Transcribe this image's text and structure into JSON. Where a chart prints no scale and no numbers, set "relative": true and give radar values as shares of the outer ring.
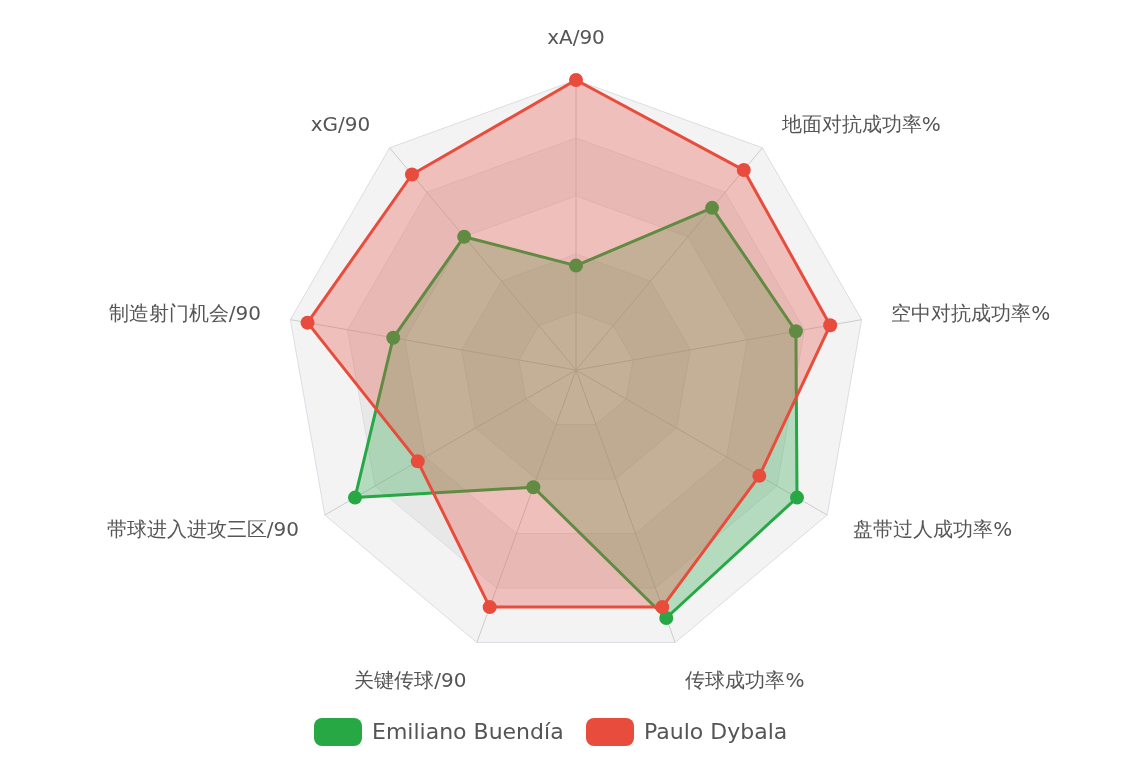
{
  "chart_data": {
    "type": "radar",
    "relative": true,
    "grid": true,
    "legend": "bottom",
    "marker": "circle",
    "categories": [
      "xA/90",
      "地面对抗成功率%",
      "空中对抗成功率%",
      "盘带过人成功率%",
      "传球成功率%",
      "关键传球/90",
      "带球进入进攻三区/90",
      "制造射门机会/90",
      "xG/90"
    ],
    "series": [
      {
        "name": "Emiliano Buendía",
        "color": "#28a745",
        "values": [
          0.36,
          0.73,
          0.77,
          0.88,
          0.91,
          0.43,
          0.88,
          0.64,
          0.6
        ]
      },
      {
        "name": "Paulo Dybala",
        "color": "#e74c3c",
        "values": [
          1.0,
          0.9,
          0.89,
          0.73,
          0.87,
          0.87,
          0.63,
          0.94,
          0.88
        ]
      }
    ]
  }
}
